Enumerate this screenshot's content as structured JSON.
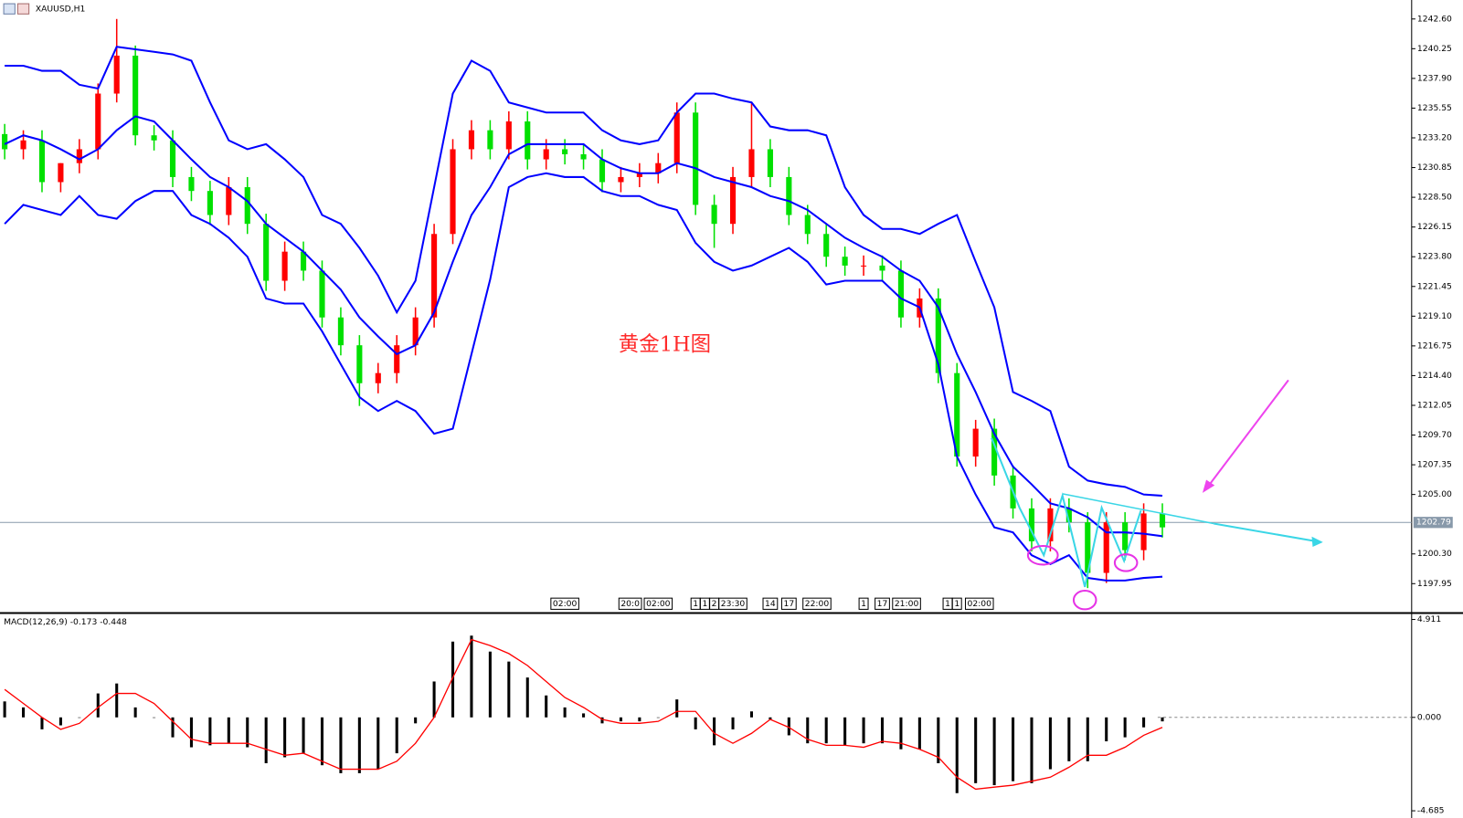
{
  "chart_data": {
    "type": "candlestick",
    "symbol": "XAUUSD,H1",
    "annotation": "黄金1H图",
    "up_color": "#ff0000",
    "down_color": "#00e000",
    "band_color": "#0000ff",
    "current_price": 1202.79,
    "ylim": [
      1195.7,
      1244.1
    ],
    "yticks": [
      {
        "value": 1242.6,
        "label": "1242.60"
      },
      {
        "value": 1240.25,
        "label": "1240.25"
      },
      {
        "value": 1237.9,
        "label": "1237.90"
      },
      {
        "value": 1235.55,
        "label": "1235.55"
      },
      {
        "value": 1233.2,
        "label": "1233.20"
      },
      {
        "value": 1230.85,
        "label": "1230.85"
      },
      {
        "value": 1228.5,
        "label": "1228.50"
      },
      {
        "value": 1226.15,
        "label": "1226.15"
      },
      {
        "value": 1223.8,
        "label": "1223.80"
      },
      {
        "value": 1221.45,
        "label": "1221.45"
      },
      {
        "value": 1219.1,
        "label": "1219.10"
      },
      {
        "value": 1216.75,
        "label": "1216.75"
      },
      {
        "value": 1214.4,
        "label": "1214.40"
      },
      {
        "value": 1212.05,
        "label": "1212.05"
      },
      {
        "value": 1209.7,
        "label": "1209.70"
      },
      {
        "value": 1207.35,
        "label": "1207.35"
      },
      {
        "value": 1205,
        "label": "1205.00"
      },
      {
        "value": 1200.3,
        "label": "1200.30"
      },
      {
        "value": 1197.95,
        "label": "1197.95"
      }
    ],
    "xticks": [
      {
        "value": 30,
        "label": "02:00"
      },
      {
        "value": 33.5,
        "label": "20:0"
      },
      {
        "value": 35,
        "label": "02:00"
      },
      {
        "value": 37,
        "label": "1"
      },
      {
        "value": 37.5,
        "label": "1"
      },
      {
        "value": 38,
        "label": "2"
      },
      {
        "value": 39,
        "label": "23:30"
      },
      {
        "value": 41,
        "label": "14"
      },
      {
        "value": 42,
        "label": "17"
      },
      {
        "value": 43.5,
        "label": "22:00"
      },
      {
        "value": 46,
        "label": "1"
      },
      {
        "value": 47,
        "label": "17"
      },
      {
        "value": 48.3,
        "label": "21:00"
      },
      {
        "value": 50.5,
        "label": "1"
      },
      {
        "value": 51,
        "label": "1"
      },
      {
        "value": 52.2,
        "label": "02:00"
      }
    ],
    "open": [
      1233.5,
      1232.3,
      1233.0,
      1229.7,
      1231.2,
      1232.3,
      1236.7,
      1239.7,
      1233.4,
      1233.0,
      1230.1,
      1229.0,
      1227.1,
      1229.3,
      1226.4,
      1221.9,
      1224.2,
      1222.7,
      1219.0,
      1216.8,
      1213.8,
      1214.6,
      1216.8,
      1219.0,
      1225.6,
      1232.3,
      1233.8,
      1232.3,
      1234.5,
      1231.5,
      1232.3,
      1231.9,
      1231.5,
      1229.7,
      1230.1,
      1230.4,
      1231.2,
      1235.2,
      1227.9,
      1226.4,
      1230.1,
      1232.3,
      1230.1,
      1227.1,
      1225.6,
      1223.8,
      1223.1,
      1223.1,
      1222.7,
      1219.0,
      1220.5,
      1214.6,
      1208.0,
      1210.2,
      1206.5,
      1203.9,
      1201.3,
      1203.9,
      1202.8,
      1198.8,
      1202.8,
      1200.6,
      1203.5
    ],
    "high": [
      1234.3,
      1233.8,
      1233.8,
      1231.2,
      1233.1,
      1237.5,
      1242.6,
      1240.5,
      1234.2,
      1233.8,
      1230.9,
      1229.8,
      1230.1,
      1230.1,
      1227.2,
      1225.0,
      1225.0,
      1223.5,
      1219.8,
      1217.6,
      1215.4,
      1217.6,
      1219.8,
      1226.4,
      1233.1,
      1234.6,
      1234.6,
      1235.3,
      1235.3,
      1233.1,
      1233.1,
      1232.7,
      1232.3,
      1230.9,
      1231.2,
      1232.0,
      1236.0,
      1236.0,
      1228.7,
      1230.9,
      1236.0,
      1233.1,
      1230.9,
      1227.9,
      1226.4,
      1224.6,
      1223.9,
      1223.9,
      1223.5,
      1221.3,
      1221.3,
      1215.4,
      1210.9,
      1211.0,
      1207.3,
      1204.7,
      1204.7,
      1204.7,
      1203.6,
      1203.6,
      1203.6,
      1204.3,
      1204.3
    ],
    "low": [
      1231.5,
      1231.5,
      1228.9,
      1228.9,
      1230.4,
      1231.5,
      1236.0,
      1232.6,
      1232.2,
      1229.3,
      1228.2,
      1226.3,
      1226.3,
      1225.6,
      1221.1,
      1221.1,
      1221.9,
      1218.2,
      1216.0,
      1212.0,
      1213.0,
      1213.8,
      1216.0,
      1218.2,
      1224.8,
      1231.5,
      1231.5,
      1231.5,
      1230.7,
      1230.7,
      1231.1,
      1230.7,
      1228.9,
      1228.9,
      1229.3,
      1229.6,
      1230.4,
      1227.1,
      1224.5,
      1225.6,
      1229.3,
      1229.3,
      1226.3,
      1224.8,
      1223.0,
      1222.3,
      1222.3,
      1221.9,
      1218.2,
      1218.2,
      1213.8,
      1207.2,
      1207.2,
      1205.7,
      1203.1,
      1200.5,
      1200.5,
      1202.0,
      1197.6,
      1198.0,
      1199.8,
      1199.8,
      1201.6
    ],
    "close": [
      1232.3,
      1233.0,
      1229.7,
      1231.2,
      1232.3,
      1236.7,
      1239.7,
      1233.4,
      1233.0,
      1230.1,
      1229.0,
      1227.1,
      1229.3,
      1226.4,
      1221.9,
      1224.2,
      1222.7,
      1219.0,
      1216.8,
      1213.8,
      1214.6,
      1216.8,
      1219.0,
      1225.6,
      1232.3,
      1233.8,
      1232.3,
      1234.5,
      1231.5,
      1232.3,
      1231.9,
      1231.5,
      1229.7,
      1230.1,
      1230.4,
      1231.2,
      1235.2,
      1227.9,
      1226.4,
      1230.1,
      1232.3,
      1230.1,
      1227.1,
      1225.6,
      1223.8,
      1223.1,
      1223.1,
      1222.7,
      1219.0,
      1220.5,
      1214.6,
      1208.0,
      1210.2,
      1206.5,
      1203.9,
      1201.3,
      1203.9,
      1202.8,
      1198.8,
      1202.8,
      1200.6,
      1203.5,
      1202.4
    ],
    "bands": [
      {
        "values": [
          1238.9,
          1238.9,
          1238.5,
          1238.5,
          1237.4,
          1237.1,
          1240.4,
          1240.2,
          1240.0,
          1239.8,
          1239.3,
          1236.0,
          1233.0,
          1232.3,
          1232.7,
          1231.5,
          1230.1,
          1227.1,
          1226.4,
          1224.5,
          1222.3,
          1219.4,
          1221.9,
          1229.3,
          1236.7,
          1239.3,
          1238.5,
          1236.0,
          1235.6,
          1235.2,
          1235.2,
          1235.2,
          1233.8,
          1233.0,
          1232.7,
          1233.0,
          1235.2,
          1236.7,
          1236.7,
          1236.3,
          1236.0,
          1234.1,
          1233.8,
          1233.8,
          1233.4,
          1229.3,
          1227.1,
          1226.0,
          1226.0,
          1225.6,
          1226.4,
          1227.1,
          1223.4,
          1219.8,
          1213.1,
          1212.4,
          1211.6,
          1207.2,
          1206.1,
          1205.8,
          1205.6,
          1205.0,
          1204.9
        ]
      },
      {
        "values": [
          1232.7,
          1233.4,
          1233.0,
          1232.3,
          1231.5,
          1232.3,
          1233.8,
          1234.9,
          1234.5,
          1233.0,
          1231.5,
          1230.1,
          1229.3,
          1228.2,
          1226.4,
          1225.3,
          1224.2,
          1222.7,
          1221.2,
          1219.0,
          1217.5,
          1216.1,
          1216.8,
          1219.4,
          1223.4,
          1227.1,
          1229.3,
          1231.9,
          1232.7,
          1232.7,
          1232.7,
          1232.7,
          1231.5,
          1230.8,
          1230.4,
          1230.4,
          1231.2,
          1230.8,
          1230.1,
          1229.7,
          1229.3,
          1228.6,
          1228.2,
          1227.5,
          1226.4,
          1225.3,
          1224.5,
          1223.8,
          1222.7,
          1221.9,
          1219.8,
          1216.1,
          1213.1,
          1209.8,
          1207.2,
          1205.8,
          1204.3,
          1203.9,
          1203.2,
          1202.0,
          1202.0,
          1201.9,
          1201.7
        ]
      },
      {
        "values": [
          1226.4,
          1227.9,
          1227.5,
          1227.1,
          1228.6,
          1227.1,
          1226.8,
          1228.2,
          1229.0,
          1229.0,
          1227.1,
          1226.4,
          1225.3,
          1223.8,
          1220.5,
          1220.1,
          1220.1,
          1217.9,
          1215.3,
          1212.7,
          1211.6,
          1212.4,
          1211.6,
          1209.8,
          1210.2,
          1216.1,
          1222.0,
          1229.3,
          1230.1,
          1230.4,
          1230.1,
          1230.1,
          1229.0,
          1228.6,
          1228.6,
          1227.9,
          1227.5,
          1224.9,
          1223.4,
          1222.7,
          1223.1,
          1223.8,
          1224.5,
          1223.4,
          1221.6,
          1221.9,
          1221.9,
          1221.9,
          1220.5,
          1219.8,
          1215.3,
          1208.0,
          1205.0,
          1202.4,
          1202.0,
          1200.2,
          1199.5,
          1200.2,
          1198.4,
          1198.2,
          1198.2,
          1198.4,
          1198.5
        ]
      }
    ],
    "macd": {
      "label": "MACD(12,26,9) -0.173 -0.448",
      "ylim": [
        -5.0,
        5.14
      ],
      "yticks": [
        {
          "value": 4.911,
          "label": "4.911"
        },
        {
          "value": 0,
          "label": "0.000"
        },
        {
          "value": -4.685,
          "label": "-4.685"
        }
      ],
      "histogram": [
        0.8,
        0.5,
        -0.6,
        -0.4,
        0.0,
        1.2,
        1.7,
        0.5,
        0.0,
        -1.0,
        -1.5,
        -1.4,
        -1.3,
        -1.5,
        -2.3,
        -2.0,
        -1.8,
        -2.4,
        -2.8,
        -2.8,
        -2.6,
        -1.8,
        -0.3,
        1.8,
        3.8,
        4.1,
        3.3,
        2.8,
        2.0,
        1.1,
        0.5,
        0.2,
        -0.3,
        -0.2,
        -0.2,
        0.0,
        0.9,
        -0.6,
        -1.4,
        -0.6,
        0.3,
        -0.1,
        -0.9,
        -1.3,
        -1.3,
        -1.4,
        -1.3,
        -1.3,
        -1.6,
        -1.6,
        -2.3,
        -3.8,
        -3.3,
        -3.4,
        -3.2,
        -3.3,
        -2.6,
        -2.2,
        -2.2,
        -1.2,
        -1.0,
        -0.5,
        -0.2
      ],
      "signal": {
        "color": "#ff0000",
        "values": [
          1.4,
          0.7,
          0.0,
          -0.6,
          -0.3,
          0.5,
          1.2,
          1.2,
          0.7,
          -0.2,
          -1.1,
          -1.3,
          -1.3,
          -1.3,
          -1.6,
          -1.9,
          -1.8,
          -2.2,
          -2.6,
          -2.6,
          -2.6,
          -2.2,
          -1.3,
          0.0,
          2.0,
          3.9,
          3.6,
          3.2,
          2.6,
          1.8,
          1.0,
          0.5,
          -0.1,
          -0.3,
          -0.3,
          -0.2,
          0.3,
          0.3,
          -0.8,
          -1.3,
          -0.8,
          -0.1,
          -0.5,
          -1.1,
          -1.4,
          -1.4,
          -1.5,
          -1.2,
          -1.3,
          -1.6,
          -2.0,
          -3.0,
          -3.6,
          -3.5,
          -3.4,
          -3.2,
          -3.0,
          -2.5,
          -1.9,
          -1.9,
          -1.5,
          -0.9,
          -0.5
        ]
      }
    }
  }
}
